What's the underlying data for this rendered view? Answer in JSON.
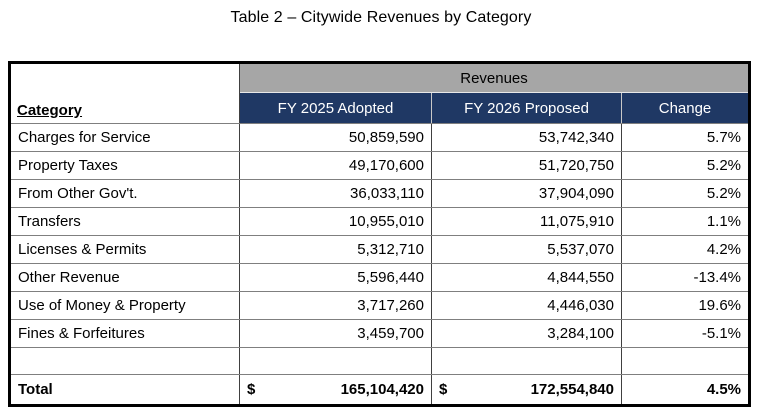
{
  "title": "Table 2 – Citywide Revenues by Category",
  "table": {
    "group_header": "Revenues",
    "columns": {
      "category": "Category",
      "fy2025": "FY 2025 Adopted",
      "fy2026": "FY 2026 Proposed",
      "change": "Change"
    },
    "rows": [
      {
        "category": "Charges for Service",
        "fy2025": "50,859,590",
        "fy2026": "53,742,340",
        "change": "5.7%"
      },
      {
        "category": "Property Taxes",
        "fy2025": "49,170,600",
        "fy2026": "51,720,750",
        "change": "5.2%"
      },
      {
        "category": "From Other Gov't.",
        "fy2025": "36,033,110",
        "fy2026": "37,904,090",
        "change": "5.2%"
      },
      {
        "category": "Transfers",
        "fy2025": "10,955,010",
        "fy2026": "11,075,910",
        "change": "1.1%"
      },
      {
        "category": "Licenses & Permits",
        "fy2025": "5,312,710",
        "fy2026": "5,537,070",
        "change": "4.2%"
      },
      {
        "category": "Other Revenue",
        "fy2025": "5,596,440",
        "fy2026": "4,844,550",
        "change": "-13.4%"
      },
      {
        "category": "Use of Money & Property",
        "fy2025": "3,717,260",
        "fy2026": "4,446,030",
        "change": "19.6%"
      },
      {
        "category": "Fines & Forfeitures",
        "fy2025": "3,459,700",
        "fy2026": "3,284,100",
        "change": "-5.1%"
      }
    ],
    "total": {
      "label": "Total",
      "currency_symbol": "$",
      "fy2025": "165,104,420",
      "fy2026": "172,554,840",
      "change": "4.5%"
    }
  },
  "colors": {
    "group_header_bg": "#a6a6a6",
    "column_header_bg": "#1f3864",
    "column_header_text": "#ffffff",
    "grid_line": "#7f7f7f",
    "outer_border": "#000000"
  }
}
